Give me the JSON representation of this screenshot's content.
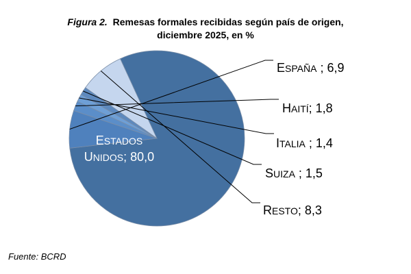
{
  "chart_data": {
    "type": "pie",
    "title_line1": {
      "prefix": "Figura 2.",
      "text": "Remesas formales recibidas según país de origen,"
    },
    "title_line2": {
      "text": "diciembre 2025, en %"
    },
    "slices": [
      {
        "name": "Estados Unidos",
        "value": 80.0,
        "display": "80,0",
        "color": "#4470a0"
      },
      {
        "name": "España",
        "value": 6.9,
        "display": "6,9",
        "color": "#4f81bd"
      },
      {
        "name": "Haití",
        "value": 1.8,
        "display": "1,8",
        "color": "#5b8ec9"
      },
      {
        "name": "Italia",
        "value": 1.4,
        "display": "1,4",
        "color": "#6e9fd6"
      },
      {
        "name": "Suiza",
        "value": 1.5,
        "display": "1,5",
        "color": "#5d89be"
      },
      {
        "name": "Resto",
        "value": 8.3,
        "display": "8,3",
        "color": "#c5d6ee"
      }
    ],
    "legend": "none"
  },
  "source": "Fuente: BCRD"
}
